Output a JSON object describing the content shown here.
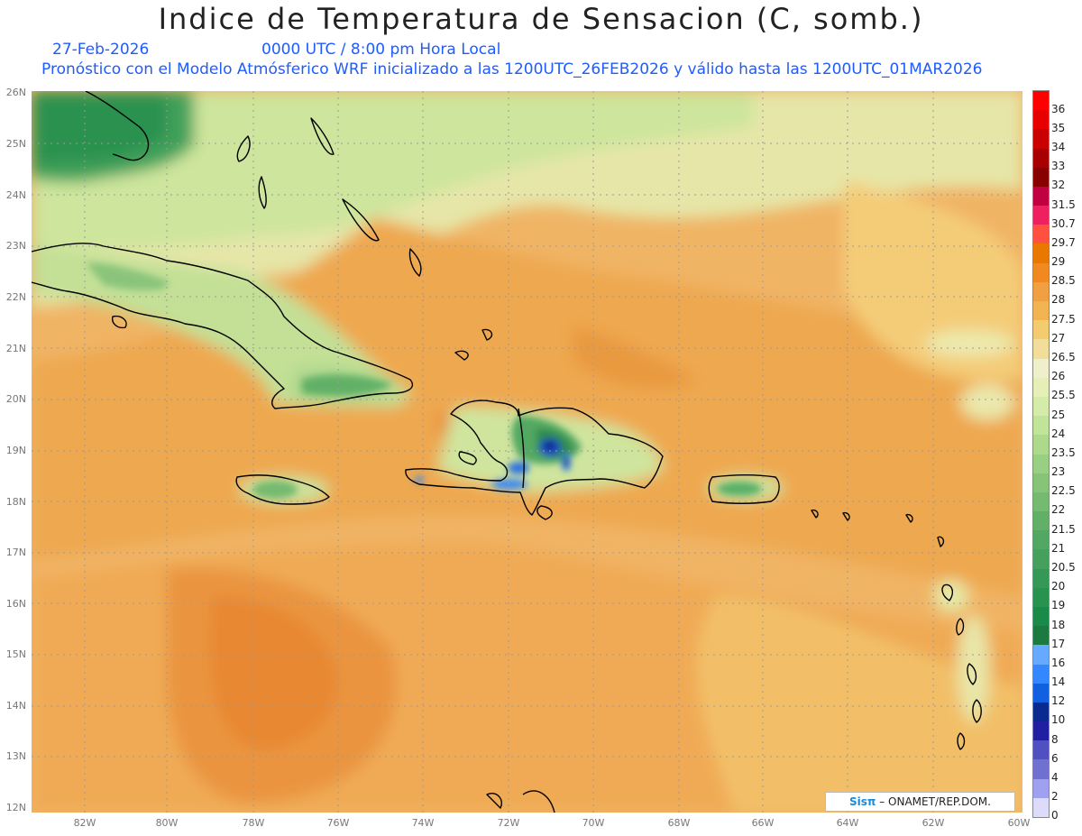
{
  "header": {
    "title": "Indice de Temperatura de Sensacion (C, somb.)",
    "date": "27-Feb-2026",
    "time": "0000 UTC / 8:00 pm Hora Local",
    "model": "Pronóstico con el Modelo Atmósferico WRF inicializado a las 1200UTC_26FEB2026 y válido hasta las  1200UTC_01MAR2026"
  },
  "map": {
    "lat_labels": [
      "26N",
      "25N",
      "24N",
      "23N",
      "22N",
      "21N",
      "20N",
      "19N",
      "18N",
      "17N",
      "16N",
      "15N",
      "14N",
      "13N",
      "12N"
    ],
    "lon_labels": [
      "82W",
      "80W",
      "78W",
      "76W",
      "74W",
      "72W",
      "70W",
      "68W",
      "66W",
      "64W",
      "62W",
      "60W"
    ],
    "lat_range": [
      12,
      26
    ],
    "lon_range": [
      -83.2,
      -60
    ]
  },
  "colorbar": {
    "levels": [
      "36",
      "35",
      "34",
      "33",
      "32",
      "31.5",
      "30.7",
      "29.7",
      "29",
      "28.5",
      "28",
      "27.5",
      "27",
      "26.5",
      "26",
      "25.5",
      "25",
      "24",
      "23.5",
      "23",
      "22.5",
      "22",
      "21.5",
      "21",
      "20.5",
      "20",
      "19",
      "18",
      "17",
      "16",
      "14",
      "12",
      "10",
      "8",
      "6",
      "4",
      "2",
      "0"
    ],
    "colors": [
      "#ff0000",
      "#e60000",
      "#c80000",
      "#a80000",
      "#880000",
      "#c00040",
      "#ee2060",
      "#ff5040",
      "#e87800",
      "#f08a20",
      "#f0a040",
      "#f2b450",
      "#f4cc70",
      "#f2de9a",
      "#f0efcc",
      "#e6efb8",
      "#d4ebaa",
      "#c0e498",
      "#acd98c",
      "#98cf82",
      "#86c478",
      "#74ba70",
      "#62b068",
      "#52a862",
      "#44a05c",
      "#369856",
      "#28924f",
      "#1a8a48",
      "#1a7a40",
      "#66aaff",
      "#3388ff",
      "#1060e0",
      "#0a2a90",
      "#2020a0",
      "#5050c0",
      "#7070d0",
      "#a0a0f0",
      "#dcdcfa"
    ]
  },
  "credit": {
    "brand": "Sisπ",
    "text": " – ONAMET/REP.DOM."
  },
  "colors": {
    "subtitle": "#1f5cff",
    "ocean_base": "#f0b060",
    "land_outline": "#000000"
  }
}
